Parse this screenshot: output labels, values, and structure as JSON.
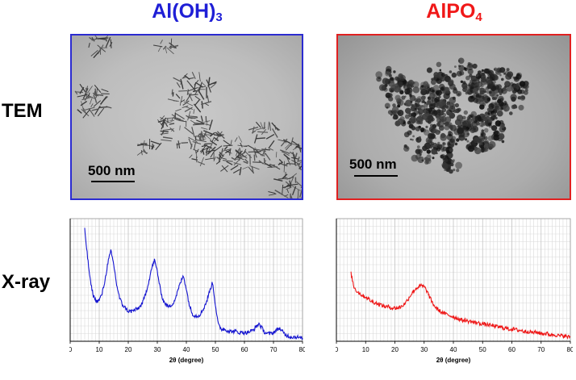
{
  "columns": [
    {
      "id": "left",
      "title_main": "Al(OH)",
      "title_sub": "3",
      "color": "#1f1fd6"
    },
    {
      "id": "right",
      "title_main": "AlPO",
      "title_sub": "4",
      "color": "#f01818"
    }
  ],
  "rows": {
    "tem_label": "TEM",
    "xray_label": "X-ray"
  },
  "tem": {
    "left": {
      "scale_bar": "500 nm",
      "border_color": "#2b2bd0"
    },
    "right": {
      "scale_bar": "500 nm",
      "border_color": "#e02020"
    }
  },
  "chart_data": [
    {
      "type": "line",
      "xlabel": "2θ (degree)",
      "ylabel": "",
      "xlim": [
        0,
        80
      ],
      "xticks": [
        0,
        10,
        20,
        30,
        40,
        50,
        60,
        70,
        80
      ],
      "grid": true,
      "series": [
        {
          "color": "#1515d0",
          "x": [
            5,
            6,
            7,
            8,
            9,
            10,
            11,
            12,
            13,
            14,
            15,
            16,
            17,
            18,
            19,
            20,
            21,
            22,
            23,
            24,
            25,
            26,
            27,
            28,
            29,
            30,
            31,
            32,
            33,
            34,
            35,
            36,
            37,
            38,
            39,
            40,
            41,
            42,
            43,
            44,
            45,
            46,
            47,
            48,
            49,
            50,
            51,
            52,
            53,
            54,
            55,
            56,
            57,
            58,
            59,
            60,
            61,
            62,
            63,
            64,
            65,
            66,
            67,
            68,
            69,
            70,
            71,
            72,
            73,
            74,
            75,
            76,
            77,
            78,
            79,
            80
          ],
          "y": [
            0.98,
            0.72,
            0.5,
            0.38,
            0.33,
            0.34,
            0.4,
            0.52,
            0.68,
            0.78,
            0.66,
            0.48,
            0.36,
            0.3,
            0.27,
            0.24,
            0.24,
            0.25,
            0.26,
            0.28,
            0.32,
            0.4,
            0.5,
            0.62,
            0.7,
            0.6,
            0.44,
            0.34,
            0.3,
            0.28,
            0.3,
            0.34,
            0.42,
            0.5,
            0.56,
            0.44,
            0.3,
            0.22,
            0.2,
            0.2,
            0.22,
            0.27,
            0.33,
            0.42,
            0.5,
            0.3,
            0.12,
            0.08,
            0.08,
            0.07,
            0.06,
            0.06,
            0.06,
            0.05,
            0.05,
            0.05,
            0.05,
            0.06,
            0.07,
            0.1,
            0.13,
            0.09,
            0.05,
            0.04,
            0.04,
            0.05,
            0.07,
            0.09,
            0.06,
            0.03,
            0.02,
            0.01,
            0.01,
            0.01,
            0.0,
            0.0
          ]
        }
      ]
    },
    {
      "type": "line",
      "xlabel": "2θ (degree)",
      "ylabel": "",
      "xlim": [
        0,
        80
      ],
      "xticks": [
        0,
        10,
        20,
        30,
        40,
        50,
        60,
        70,
        80
      ],
      "grid": true,
      "series": [
        {
          "color": "#ee1515",
          "x": [
            5,
            6,
            7,
            8,
            9,
            10,
            11,
            12,
            13,
            14,
            15,
            16,
            17,
            18,
            19,
            20,
            21,
            22,
            23,
            24,
            25,
            26,
            27,
            28,
            29,
            30,
            31,
            32,
            33,
            34,
            35,
            36,
            37,
            38,
            39,
            40,
            41,
            42,
            43,
            44,
            45,
            46,
            47,
            48,
            49,
            50,
            51,
            52,
            53,
            54,
            55,
            56,
            57,
            58,
            59,
            60,
            61,
            62,
            63,
            64,
            65,
            66,
            67,
            68,
            69,
            70,
            71,
            72,
            73,
            74,
            75,
            76,
            77,
            78,
            79,
            80
          ],
          "y": [
            0.58,
            0.46,
            0.42,
            0.4,
            0.38,
            0.37,
            0.35,
            0.33,
            0.32,
            0.31,
            0.3,
            0.29,
            0.28,
            0.28,
            0.27,
            0.27,
            0.27,
            0.28,
            0.3,
            0.33,
            0.37,
            0.41,
            0.44,
            0.46,
            0.47,
            0.46,
            0.42,
            0.36,
            0.31,
            0.27,
            0.25,
            0.23,
            0.22,
            0.21,
            0.2,
            0.19,
            0.18,
            0.17,
            0.16,
            0.16,
            0.15,
            0.15,
            0.14,
            0.14,
            0.13,
            0.13,
            0.12,
            0.12,
            0.11,
            0.11,
            0.1,
            0.1,
            0.09,
            0.09,
            0.08,
            0.08,
            0.08,
            0.07,
            0.07,
            0.06,
            0.06,
            0.06,
            0.05,
            0.05,
            0.05,
            0.04,
            0.04,
            0.04,
            0.03,
            0.03,
            0.03,
            0.02,
            0.02,
            0.02,
            0.01,
            0.01
          ]
        }
      ]
    }
  ]
}
